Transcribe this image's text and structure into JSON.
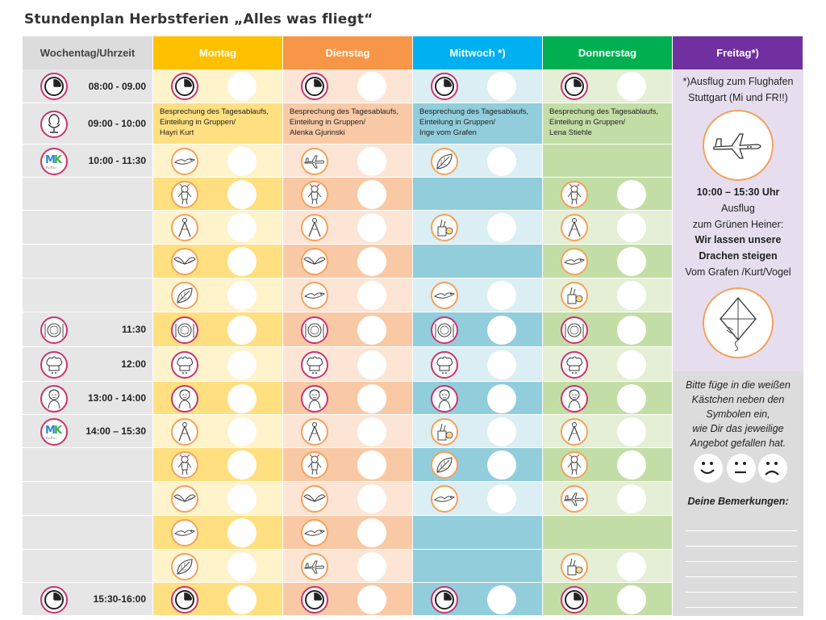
{
  "title": "Stundenplan Herbstferien „Alles was fliegt“",
  "headers": {
    "time": "Wochentag/Uhrzeit",
    "days": [
      {
        "label": "Montag",
        "color": "#ffc000"
      },
      {
        "label": "Dienstag",
        "color": "#f79646"
      },
      {
        "label": "Mittwoch *)",
        "color": "#00b0f0"
      },
      {
        "label": "Donnerstag",
        "color": "#00b050"
      },
      {
        "label": "Freitag*)",
        "color": "#7030a0"
      }
    ]
  },
  "day_colors": {
    "mon_light": "#fff3cc",
    "mon_dark": "#ffdf80",
    "tue_light": "#fde5d6",
    "tue_dark": "#f9c9a6",
    "wed_light": "#dbeef3",
    "wed_dark": "#92cddc",
    "thu_light": "#e4efd6",
    "thu_dark": "#c3dda6"
  },
  "rows": [
    {
      "time": "08:00 - 09.00",
      "time_icon": "clock-icon",
      "cells": [
        "clock-icon",
        "clock-icon",
        "clock-icon",
        "clock-icon"
      ]
    },
    {
      "time": "09:00 - 10:00",
      "time_icon": "egg-cup-icon",
      "descs": [
        [
          "Besprechung des Tagesablaufs,",
          "Einteilung in Gruppen/",
          "Hayri Kurt"
        ],
        [
          "Besprechung des Tagesablaufs,",
          "Einteilung in Gruppen/",
          "Alenka Gjurinski"
        ],
        [
          "Besprechung des Tagesablaufs,",
          "Einteilung in Gruppen/",
          "Inge vom Grafen"
        ],
        [
          "Besprechung des Tagesablaufs,",
          "Einteilung in Gruppen/",
          "Lena Stiehle"
        ]
      ]
    },
    {
      "time": "10:00 - 11:30",
      "time_icon": "mk-logo",
      "cells": [
        "bird-icon",
        "airplane-icon",
        "leaf-icon",
        ""
      ]
    },
    {
      "time": "",
      "time_icon": "",
      "cells": [
        "figure-icon",
        "figure-icon",
        "",
        "figure-icon"
      ]
    },
    {
      "time": "",
      "time_icon": "",
      "cells": [
        "compass-icon",
        "compass-icon",
        "craft-icon",
        "compass-icon"
      ]
    },
    {
      "time": "",
      "time_icon": "",
      "cells": [
        "wings-icon",
        "wings-icon",
        "",
        "bird-icon"
      ]
    },
    {
      "time": "",
      "time_icon": "",
      "cells": [
        "leaf-icon",
        "bird-icon",
        "bird-icon",
        "craft-icon"
      ]
    },
    {
      "time": "11:30",
      "time_icon": "plate-icon",
      "cells": [
        "plate-icon",
        "plate-icon",
        "plate-icon",
        "plate-icon"
      ]
    },
    {
      "time": "12:00",
      "time_icon": "chef-hat-icon",
      "cells": [
        "chef-hat-icon",
        "chef-hat-icon",
        "chef-hat-icon",
        "chef-hat-icon"
      ]
    },
    {
      "time": "13:00 - 14:00",
      "time_icon": "child-icon",
      "cells": [
        "child-icon",
        "child-icon",
        "child-icon",
        "child-icon"
      ]
    },
    {
      "time": "14:00 – 15:30",
      "time_icon": "mk-logo",
      "cells": [
        "compass-icon",
        "compass-icon",
        "craft-icon",
        "compass-icon"
      ]
    },
    {
      "time": "",
      "time_icon": "",
      "cells": [
        "figure-icon",
        "figure-icon",
        "leaf-icon",
        "figure-icon"
      ]
    },
    {
      "time": "",
      "time_icon": "",
      "cells": [
        "wings-icon",
        "wings-icon",
        "bird-icon",
        "airplane-icon"
      ]
    },
    {
      "time": "",
      "time_icon": "",
      "cells": [
        "bird-icon",
        "bird-icon",
        "",
        ""
      ]
    },
    {
      "time": "",
      "time_icon": "",
      "cells": [
        "leaf-icon",
        "airplane-icon",
        "",
        "craft-icon"
      ]
    },
    {
      "time": "15:30-16:00",
      "time_icon": "clock-icon",
      "cells": [
        "clock-icon",
        "clock-icon",
        "clock-icon",
        "clock-icon"
      ]
    }
  ],
  "friday": {
    "note_lines": [
      "*)Ausflug zum Flughafen",
      "Stuttgart (Mi und FR!!)"
    ],
    "plane_icon": "airplane-icon",
    "time_bold": "10:00 – 15:30 Uhr",
    "lines": [
      "Ausflug",
      "zum Grünen Heiner:"
    ],
    "bold_lines": [
      "Wir lassen unsere",
      "Drachen steigen"
    ],
    "footer_line": "Vom Grafen /Kurt/Vogel",
    "kite_icon": "kite-icon",
    "instructions": [
      "Bitte füge in die weißen",
      "Kästchen neben den",
      "Symbolen ein,",
      "wie Dir das jeweilige",
      "Angebot gefallen hat."
    ],
    "faces": [
      "happy-face-icon",
      "neutral-face-icon",
      "sad-face-icon"
    ],
    "remarks_label": "Deine Bemerkungen:"
  }
}
